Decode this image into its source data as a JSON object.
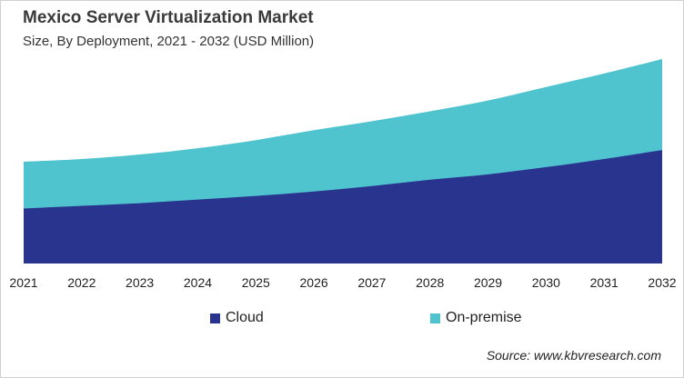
{
  "chart_data": {
    "type": "area",
    "stacked": true,
    "title": "Mexico Server Virtualization Market",
    "subtitle": "Size, By Deployment, 2021 - 2032 (USD Million)",
    "xlabel": "",
    "ylabel": "",
    "categories": [
      "2021",
      "2022",
      "2023",
      "2024",
      "2025",
      "2026",
      "2027",
      "2028",
      "2029",
      "2030",
      "2031",
      "2032"
    ],
    "series": [
      {
        "name": "Cloud",
        "color": "#29348e",
        "values": [
          61,
          64,
          67,
          71,
          75,
          80,
          86,
          93,
          99,
          107,
          116,
          126
        ]
      },
      {
        "name": "On-premise",
        "color": "#4fc4cf",
        "values": [
          52,
          52,
          54,
          57,
          62,
          68,
          72,
          76,
          82,
          89,
          95,
          101
        ]
      }
    ],
    "ylim": [
      0,
      230
    ],
    "y_axis_visible": false,
    "grid": false,
    "legend_position": "bottom",
    "source": "Source: www.kbvresearch.com"
  }
}
